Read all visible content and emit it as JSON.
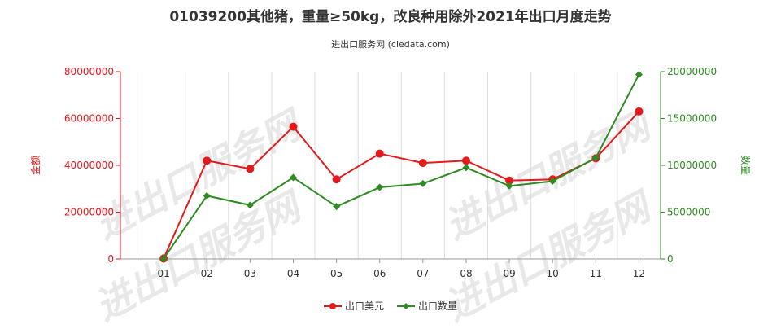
{
  "chart_data": {
    "type": "line",
    "title": "01039200其他猪，重量≥50kg，改良种用除外2021年出口月度走势",
    "subtitle": "进出口服务网 (ciedata.com)",
    "watermark": "进出口服务网",
    "categories": [
      "01",
      "02",
      "03",
      "04",
      "05",
      "06",
      "07",
      "08",
      "09",
      "10",
      "11",
      "12"
    ],
    "y_left": {
      "label": "金额",
      "ticks": [
        "0",
        "20000000",
        "40000000",
        "60000000",
        "80000000"
      ],
      "range": [
        0,
        80000000
      ],
      "color": "#e31a1c"
    },
    "y_right": {
      "label": "数量",
      "ticks": [
        "0",
        "5000000",
        "10000000",
        "15000000",
        "20000000"
      ],
      "range": [
        0,
        20000000
      ],
      "color": "#2e8b22"
    },
    "series": [
      {
        "name": "出口美元",
        "axis": "left",
        "color": "#e31a1c",
        "marker": "circle",
        "values": [
          200000,
          42000000,
          38500000,
          56500000,
          34000000,
          45000000,
          41000000,
          42000000,
          33500000,
          34000000,
          43000000,
          63000000
        ]
      },
      {
        "name": "出口数量",
        "axis": "right",
        "color": "#2e8b22",
        "marker": "diamond",
        "values": [
          30000,
          6750000,
          5750000,
          8700000,
          5600000,
          7650000,
          8050000,
          9750000,
          7800000,
          8300000,
          10800000,
          19700000
        ]
      }
    ],
    "grid": "vertical"
  }
}
